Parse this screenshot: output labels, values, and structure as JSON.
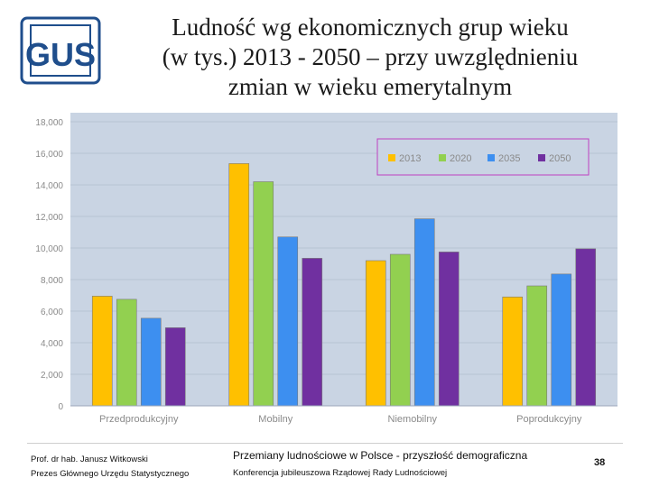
{
  "logo": {
    "text": "GUS"
  },
  "title": {
    "line1": "Ludność wg ekonomicznych grup wieku",
    "line2": "(w tys.) 2013 - 2050 – przy uwzględnieniu",
    "line3": "zmian  w wieku emerytalnym"
  },
  "colors": {
    "s2013": "#FFC000",
    "s2020": "#92D050",
    "s2035": "#3D8FF0",
    "s2050": "#7030A0",
    "plot_bg": "#C9D4E3",
    "legend_border": "#C040C0"
  },
  "chart_data": {
    "type": "bar",
    "title": "",
    "xlabel": "",
    "ylabel": "",
    "ylim": [
      0,
      18000
    ],
    "yticks": [
      "0",
      "2,000",
      "4,000",
      "6,000",
      "8,000",
      "10,000",
      "12,000",
      "14,000",
      "16,000",
      "18,000"
    ],
    "ytick_values": [
      0,
      2000,
      4000,
      6000,
      8000,
      10000,
      12000,
      14000,
      16000,
      18000
    ],
    "grid": true,
    "legend_position": "top-right",
    "categories": [
      "Przedprodukcyjny",
      "Mobilny",
      "Niemobilny",
      "Poprodukcyjny"
    ],
    "series": [
      {
        "name": "2013",
        "values": [
          6950,
          15350,
          9200,
          6900
        ]
      },
      {
        "name": "2020",
        "values": [
          6750,
          14200,
          9600,
          7600
        ]
      },
      {
        "name": "2035",
        "values": [
          5550,
          10700,
          11850,
          8350
        ]
      },
      {
        "name": "2050",
        "values": [
          4950,
          9350,
          9750,
          9950
        ]
      }
    ]
  },
  "footer": {
    "author": "Prof. dr hab. Janusz Witkowski",
    "author_role": "Prezes Głównego Urzędu Statystycznego",
    "presentation_title": "Przemiany ludnościowe w Polsce -  przyszłość demograficzna",
    "conference": "Konferencja jubileuszowa Rządowej Rady Ludnościowej",
    "page_number": "38"
  }
}
